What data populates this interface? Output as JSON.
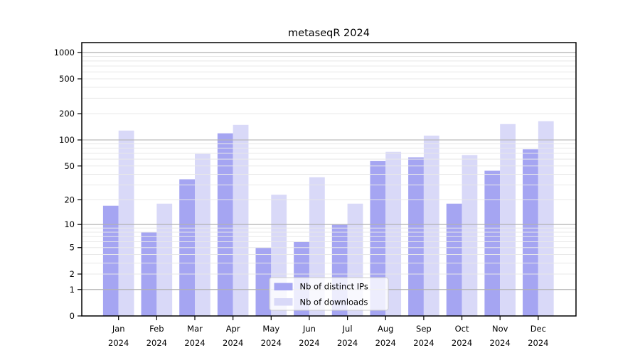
{
  "title": "metaseqR 2024",
  "chart_data": {
    "type": "bar",
    "title": "metaseqR 2024",
    "categories": [
      "Jan 2024",
      "Feb 2024",
      "Mar 2024",
      "Apr 2024",
      "May 2024",
      "Jun 2024",
      "Jul 2024",
      "Aug 2024",
      "Sep 2024",
      "Oct 2024",
      "Nov 2024",
      "Dec 2024"
    ],
    "series": [
      {
        "name": "Nb of distinct IPs",
        "color": "#a5a5f2",
        "values": [
          17,
          8,
          35,
          119,
          5,
          6,
          10,
          57,
          63,
          18,
          44,
          78
        ]
      },
      {
        "name": "Nb of downloads",
        "color": "#d9d9f8",
        "values": [
          128,
          18,
          69,
          149,
          23,
          37,
          18,
          73,
          112,
          67,
          152,
          164
        ]
      }
    ],
    "yscale": "log10(value+1)",
    "yticks": [
      0,
      1,
      2,
      5,
      10,
      20,
      50,
      100,
      200,
      500,
      1000
    ],
    "ylim": [
      0,
      1294
    ],
    "xlabel": "",
    "ylabel": "",
    "grid": "horizontal; light minor lines at 2-9 per decade, darker lines at 1,10,100,1000; drawn over bars",
    "legend_position": "inside lower-center",
    "colors": {
      "major_gridline": "#b2b2b2",
      "minor_gridline": "#e8e8e8",
      "spine": "#000000",
      "legend_border": "#cccccc",
      "legend_background": "rgba(255,255,255,0.8)"
    }
  }
}
